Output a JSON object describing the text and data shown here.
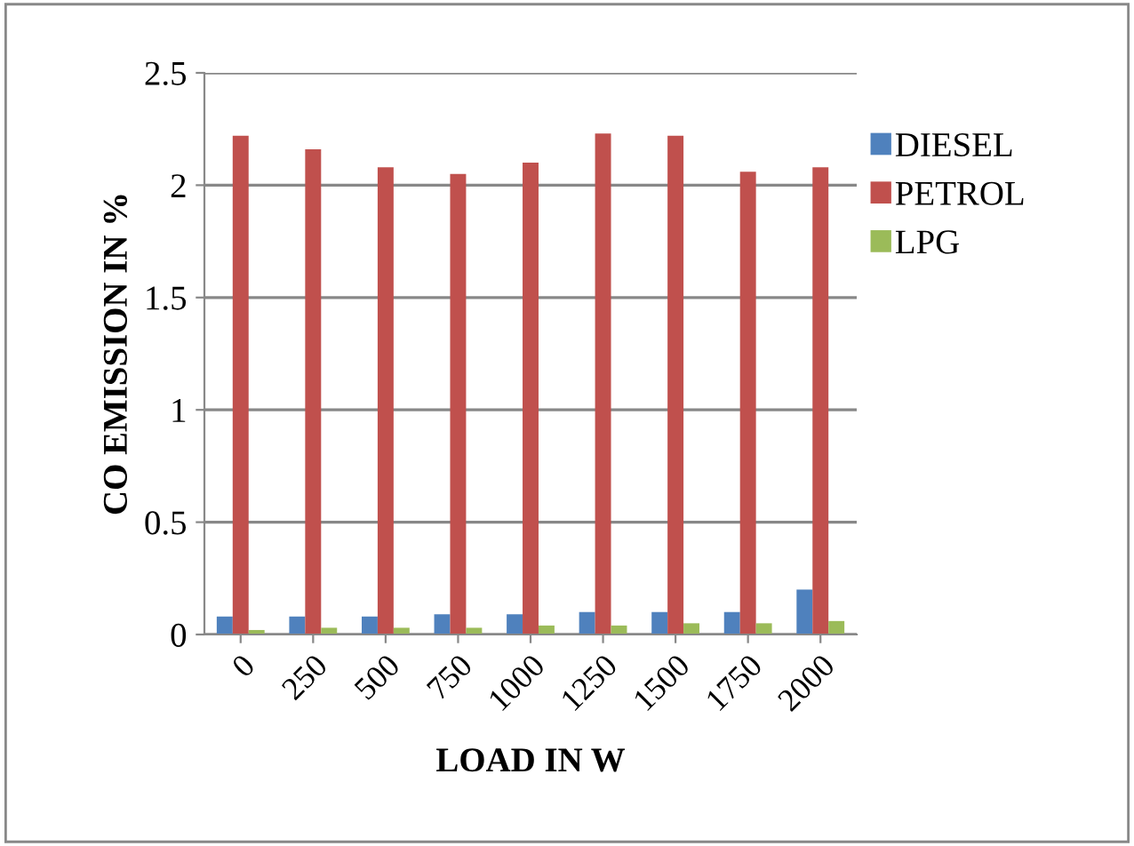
{
  "chart_data": {
    "type": "bar",
    "xlabel": "LOAD IN W",
    "ylabel": "CO EMISSION IN %",
    "categories": [
      "0",
      "250",
      "500",
      "750",
      "1000",
      "1250",
      "1500",
      "1750",
      "2000"
    ],
    "series": [
      {
        "name": "DIESEL",
        "color": "#4f81bd",
        "values": [
          0.08,
          0.08,
          0.08,
          0.09,
          0.09,
          0.1,
          0.1,
          0.1,
          0.2
        ]
      },
      {
        "name": "PETROL",
        "color": "#c0504d",
        "values": [
          2.22,
          2.16,
          2.08,
          2.05,
          2.1,
          2.23,
          2.22,
          2.06,
          2.08
        ]
      },
      {
        "name": "LPG",
        "color": "#9bbb59",
        "values": [
          0.02,
          0.03,
          0.03,
          0.03,
          0.04,
          0.04,
          0.05,
          0.05,
          0.06
        ]
      }
    ],
    "ylim": [
      0,
      2.5
    ],
    "yticks": [
      0,
      0.5,
      1,
      1.5,
      2,
      2.5
    ],
    "grid": "y",
    "legend": "right"
  }
}
